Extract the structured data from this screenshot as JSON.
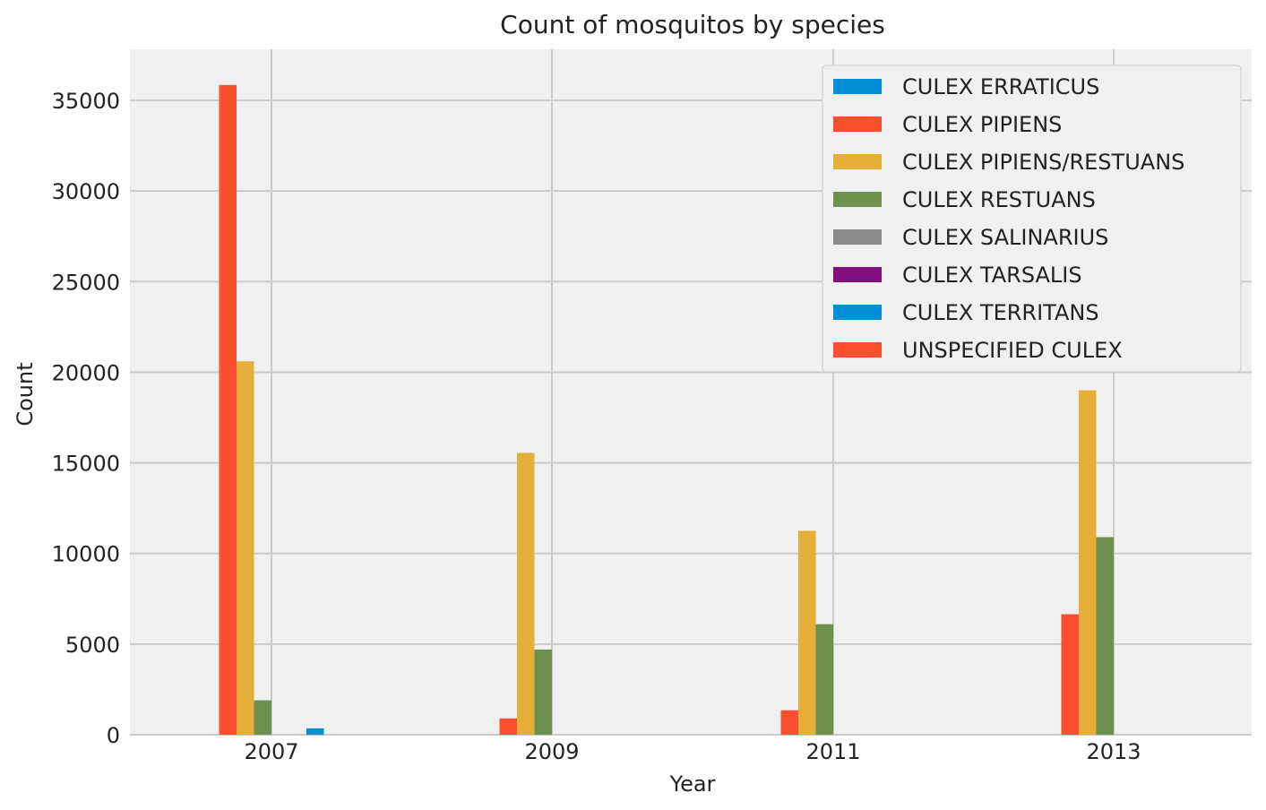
{
  "chart_data": {
    "type": "bar",
    "title": "Count of mosquitos by species",
    "xlabel": "Year",
    "ylabel": "Count",
    "categories": [
      "2007",
      "2009",
      "2011",
      "2013"
    ],
    "ylim": [
      0,
      37500
    ],
    "yticks": [
      0,
      5000,
      10000,
      15000,
      20000,
      25000,
      30000,
      35000
    ],
    "grid": true,
    "legend_position": "top-right",
    "series": [
      {
        "name": "CULEX ERRATICUS",
        "color": "#008fd5",
        "values": [
          0,
          0,
          0,
          0
        ]
      },
      {
        "name": "CULEX PIPIENS",
        "color": "#fc4f30",
        "values": [
          35850,
          900,
          1350,
          6650
        ]
      },
      {
        "name": "CULEX PIPIENS/RESTUANS",
        "color": "#e5ae38",
        "values": [
          20600,
          15550,
          11250,
          19000
        ]
      },
      {
        "name": "CULEX RESTUANS",
        "color": "#6d904f",
        "values": [
          1900,
          4700,
          6100,
          10900
        ]
      },
      {
        "name": "CULEX SALINARIUS",
        "color": "#8b8b8b",
        "values": [
          0,
          0,
          0,
          0
        ]
      },
      {
        "name": "CULEX TARSALIS",
        "color": "#810f7c",
        "values": [
          0,
          0,
          0,
          0
        ]
      },
      {
        "name": "CULEX TERRITANS",
        "color": "#008fd5",
        "values": [
          350,
          0,
          0,
          0
        ]
      },
      {
        "name": "UNSPECIFIED CULEX",
        "color": "#fc4f30",
        "values": [
          0,
          0,
          0,
          0
        ]
      }
    ]
  }
}
